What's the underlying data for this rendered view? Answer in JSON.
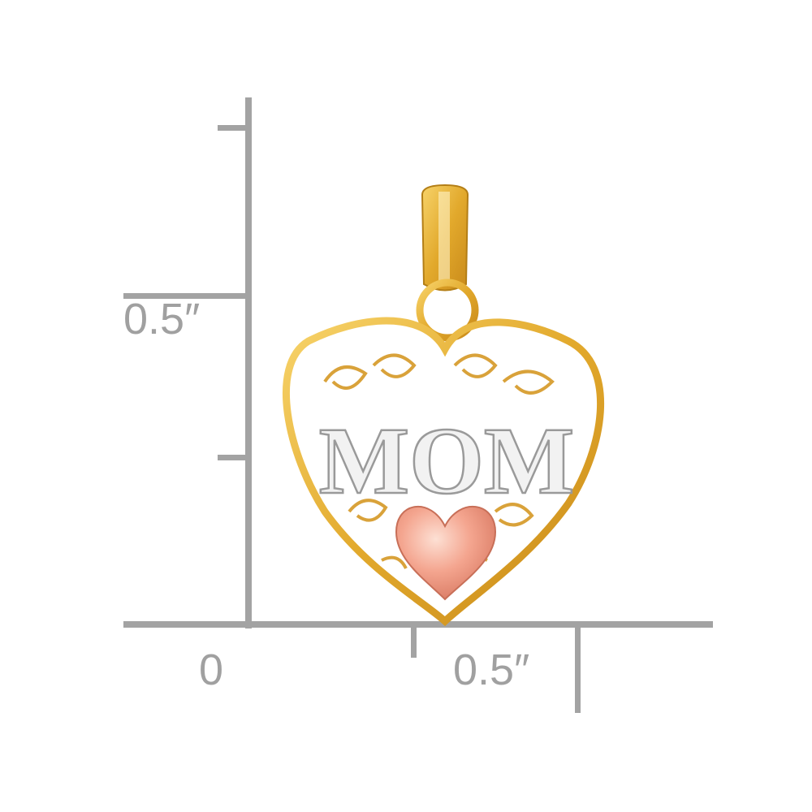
{
  "ruler": {
    "vertical_label": "0.5″",
    "horizontal_zero_label": "0",
    "horizontal_label": "0.5″",
    "color": "#a3a3a3"
  },
  "product": {
    "engraving": "MOM",
    "colors": {
      "gold": "#e9b53c",
      "white_gold": "#eeeeee",
      "rose_gold": "#f2a48e"
    }
  }
}
